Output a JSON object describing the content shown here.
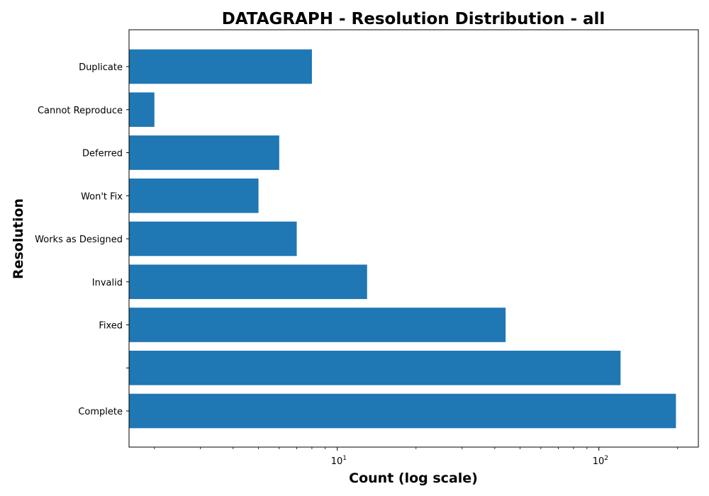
{
  "chart_data": {
    "type": "bar",
    "orientation": "horizontal",
    "title": "DATAGRAPH - Resolution Distribution - all",
    "xlabel": "Count (log scale)",
    "ylabel": "Resolution",
    "x_scale": "log",
    "xlim": [
      1.6,
      240
    ],
    "x_major_ticks": [
      {
        "base": "10",
        "exp": "1",
        "value": 10
      },
      {
        "base": "10",
        "exp": "2",
        "value": 100
      }
    ],
    "categories": [
      "Complete",
      "",
      "Fixed",
      "Invalid",
      "Works as Designed",
      "Won't Fix",
      "Deferred",
      "Cannot Reproduce",
      "Duplicate"
    ],
    "values": [
      197,
      121,
      44,
      13,
      7,
      5,
      6,
      2,
      8
    ],
    "color": "#1f77b4",
    "grid": false,
    "legend": "none"
  }
}
